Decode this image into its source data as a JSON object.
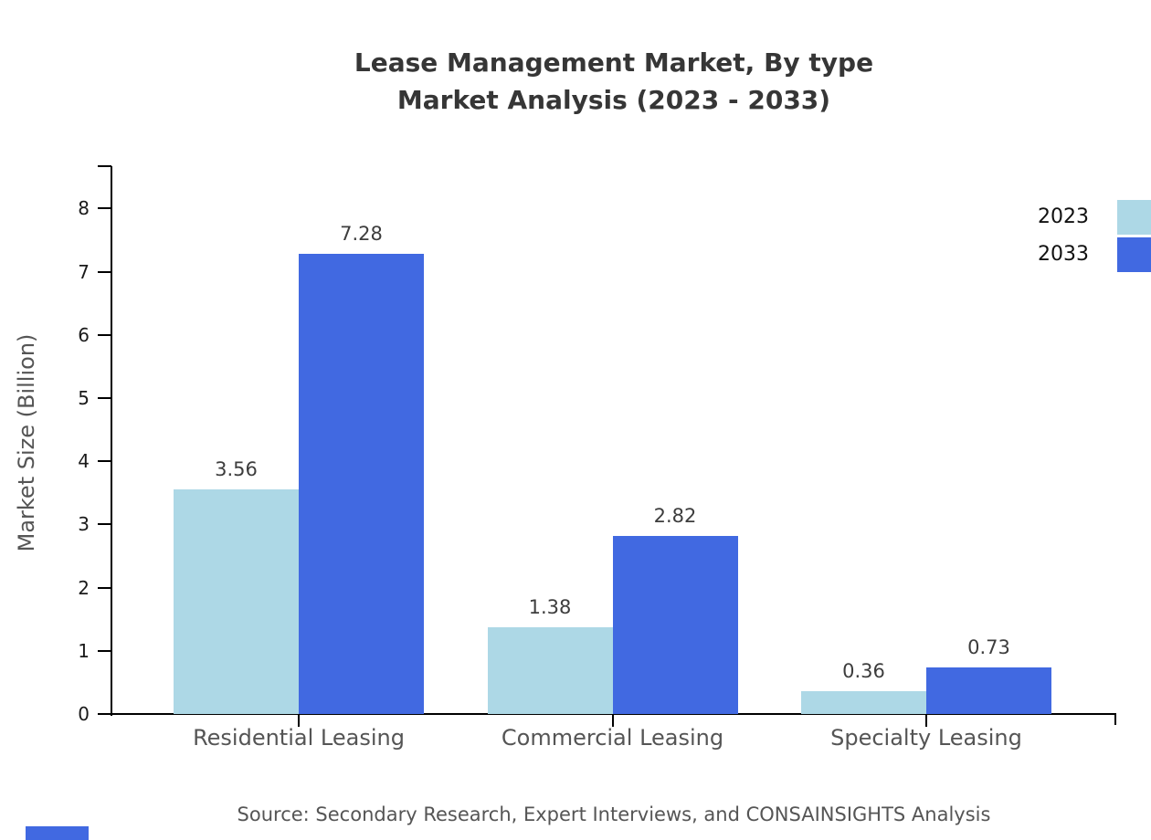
{
  "title": {
    "line1": "Lease Management Market, By type",
    "line2": "Market Analysis (2023 - 2033)"
  },
  "source": "Source: Secondary Research, Expert Interviews, and CONSAINSIGHTS Analysis",
  "chart_data": {
    "type": "bar",
    "title": "Lease Management Market, By type Market Analysis (2023 - 2033)",
    "categories": [
      "Residential Leasing",
      "Commercial Leasing",
      "Specialty Leasing"
    ],
    "series": [
      {
        "name": "2023",
        "color": "#ADD8E6",
        "values": [
          3.56,
          1.38,
          0.36
        ]
      },
      {
        "name": "2033",
        "color": "#4169E1",
        "values": [
          7.28,
          2.82,
          0.73
        ]
      }
    ],
    "xlabel": "",
    "ylabel": "Market Size (Billion)",
    "ylim": [
      0,
      8.7
    ],
    "yticks": [
      0,
      1,
      2,
      3,
      4,
      5,
      6,
      7,
      8
    ],
    "grid": false,
    "legend_position": "top-right",
    "value_labels": true,
    "value_label_format": "2dp"
  },
  "colors": {
    "series_2023": "#ADD8E6",
    "series_2033": "#4169E1",
    "axis": "#000000",
    "title_text": "#363636",
    "muted_text": "#555555",
    "brand_mark": "#4169E1"
  }
}
